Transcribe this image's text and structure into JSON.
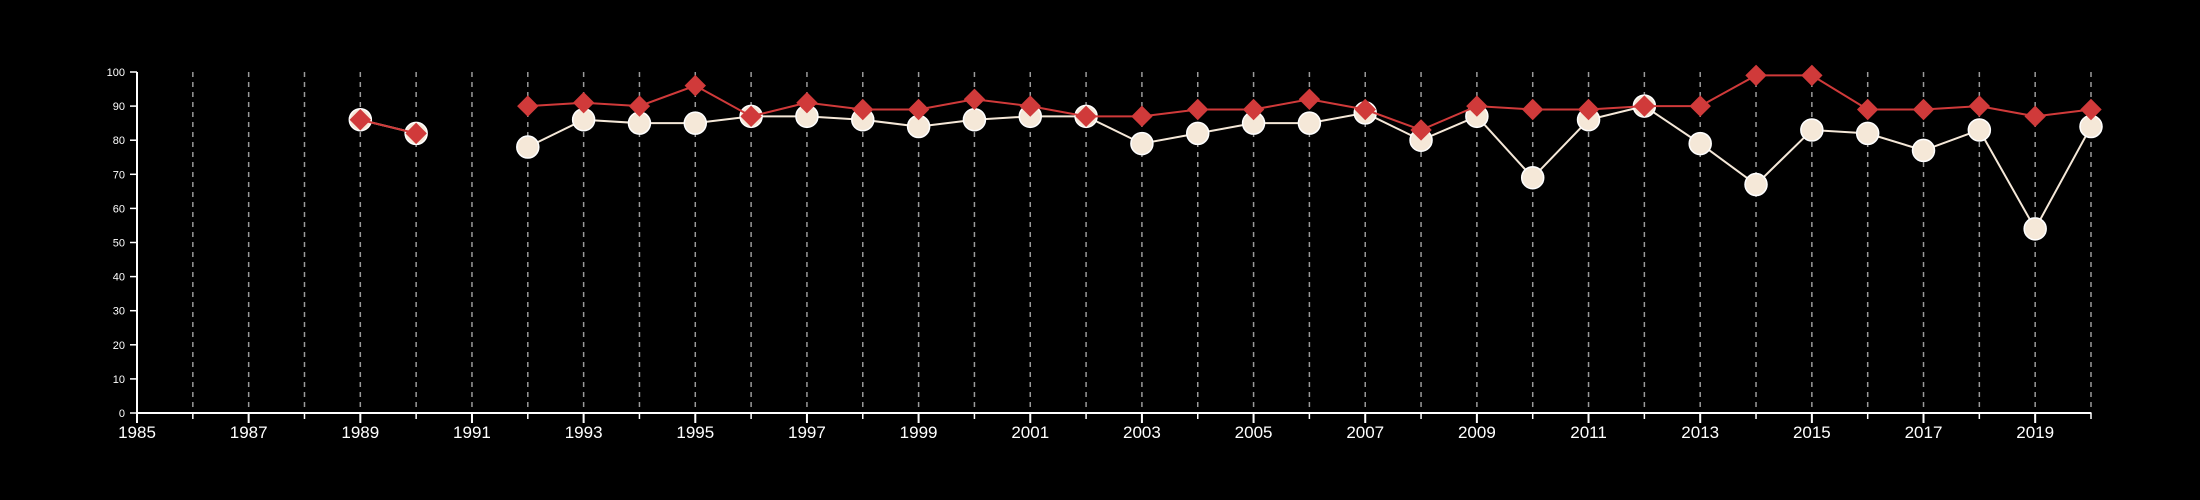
{
  "chart_data": {
    "type": "line",
    "title": "",
    "xlabel": "",
    "ylabel": "",
    "xlim": [
      1985,
      2020
    ],
    "ylim": [
      0,
      100
    ],
    "x_ticks": [
      1985,
      1987,
      1989,
      1991,
      1993,
      1995,
      1997,
      1999,
      2001,
      2003,
      2005,
      2007,
      2009,
      2011,
      2013,
      2015,
      2017,
      2019
    ],
    "y_ticks": [
      0,
      10,
      20,
      30,
      40,
      50,
      60,
      70,
      80,
      90,
      100
    ],
    "vertical_grid": true,
    "legend": false,
    "x": [
      1989,
      1990,
      1992,
      1993,
      1994,
      1995,
      1996,
      1997,
      1998,
      1999,
      2000,
      2001,
      2002,
      2003,
      2004,
      2005,
      2006,
      2007,
      2008,
      2009,
      2010,
      2011,
      2012,
      2013,
      2014,
      2015,
      2016,
      2017,
      2018,
      2019,
      2020
    ],
    "series": [
      {
        "color": "#f5e8d8",
        "marker": "circle",
        "values": [
          86,
          82,
          78,
          86,
          85,
          85,
          87,
          87,
          86,
          84,
          86,
          87,
          87,
          79,
          82,
          85,
          85,
          88,
          80,
          87,
          69,
          86,
          90,
          79,
          67,
          83,
          82,
          77,
          83,
          54,
          84
        ]
      },
      {
        "color": "#d03a3a",
        "marker": "diamond",
        "values": [
          86,
          82,
          90,
          91,
          90,
          96,
          87,
          91,
          89,
          89,
          92,
          90,
          87,
          87,
          89,
          89,
          92,
          89,
          83,
          90,
          89,
          89,
          90,
          90,
          99,
          99,
          89,
          89,
          90,
          87,
          89
        ]
      }
    ]
  }
}
